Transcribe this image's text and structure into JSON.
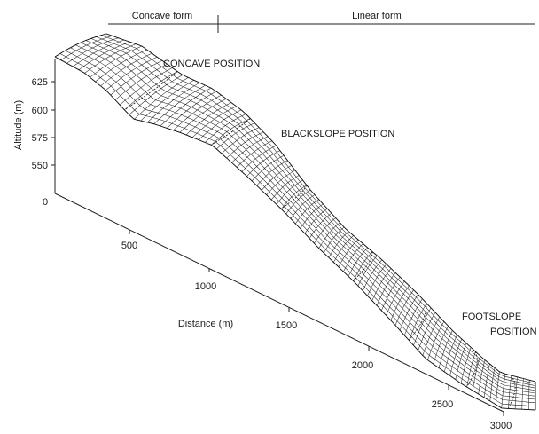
{
  "header": {
    "left_label": "Concave form",
    "right_label": "Linear form"
  },
  "annotations": {
    "concave": "CONCAVE POSITION",
    "backslope": "BLACKSLOPE POSITION",
    "footslope_line1": "FOOTSLOPE",
    "footslope_line2": "POSITION"
  },
  "axes": {
    "y_label": "Altitude (m)",
    "y_ticks": [
      "625",
      "600",
      "575",
      "550",
      "0"
    ],
    "x_label": "Distance (m)",
    "x_ticks": [
      "500",
      "1000",
      "1500",
      "2000",
      "2500",
      "3000"
    ]
  }
}
